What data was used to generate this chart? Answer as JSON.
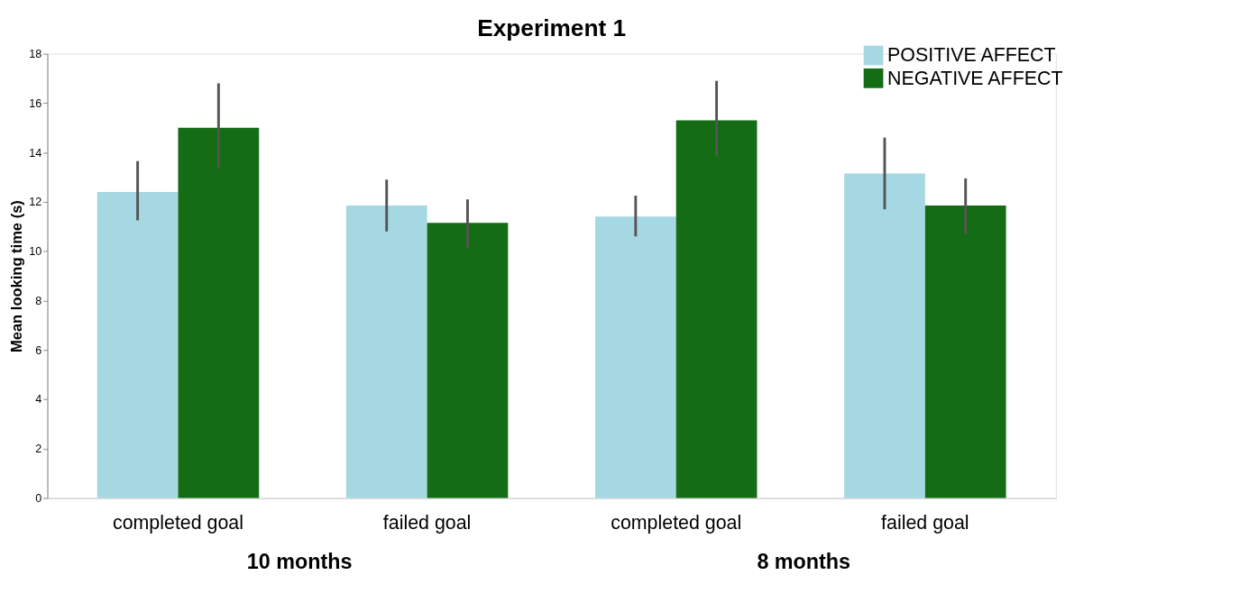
{
  "chart_data": {
    "type": "bar",
    "title": "Experiment 1",
    "ylabel": "Mean looking time (s)",
    "categories": [
      "completed goal",
      "failed goal",
      "completed goal",
      "failed goal"
    ],
    "series": [
      {
        "name": "POSITIVE AFFECT",
        "color": "#a6d8e4",
        "values": [
          12.4,
          11.85,
          11.4,
          13.15
        ],
        "errors": [
          [
            11.25,
            13.65
          ],
          [
            10.8,
            12.9
          ],
          [
            10.6,
            12.25
          ],
          [
            11.7,
            14.6
          ]
        ]
      },
      {
        "name": "NEGATIVE AFFECT",
        "color": "#146c14",
        "values": [
          15.0,
          11.15,
          15.3,
          11.85
        ],
        "errors": [
          [
            13.35,
            16.8
          ],
          [
            10.15,
            12.1
          ],
          [
            13.85,
            16.9
          ],
          [
            10.7,
            12.95
          ]
        ]
      }
    ],
    "ylim": [
      0,
      18
    ],
    "yticks": [
      0,
      2,
      4,
      6,
      8,
      10,
      12,
      14,
      16,
      18
    ],
    "grid": false,
    "legend": "top right",
    "annotations": [
      "10 months",
      "8 months"
    ]
  }
}
